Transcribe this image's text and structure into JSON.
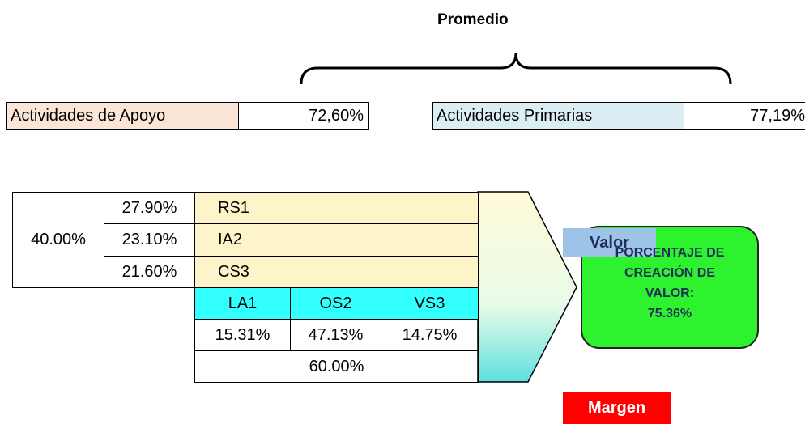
{
  "header": {
    "title": "Promedio"
  },
  "summary": [
    {
      "label": "Actividades de Apoyo",
      "value": "72,60%"
    },
    {
      "label": "Actividades  Primarias",
      "value": "77,19%"
    }
  ],
  "valor": "Valor",
  "margen": "Margen",
  "support": {
    "total": "40.00%",
    "rows": [
      [
        "27.90%",
        "RS1"
      ],
      [
        "23.10%",
        "IA2"
      ],
      [
        "21.60%",
        "CS3"
      ]
    ]
  },
  "primary": {
    "labels": [
      "LA1",
      "OS2",
      "VS3"
    ],
    "values": [
      "15.31%",
      "47.13%",
      "14.75%"
    ],
    "total": "60.00%"
  },
  "result": {
    "lines": [
      "PORCENTAJE  DE",
      "CREACIÓN DE",
      "VALOR:",
      "75.36%"
    ]
  }
}
